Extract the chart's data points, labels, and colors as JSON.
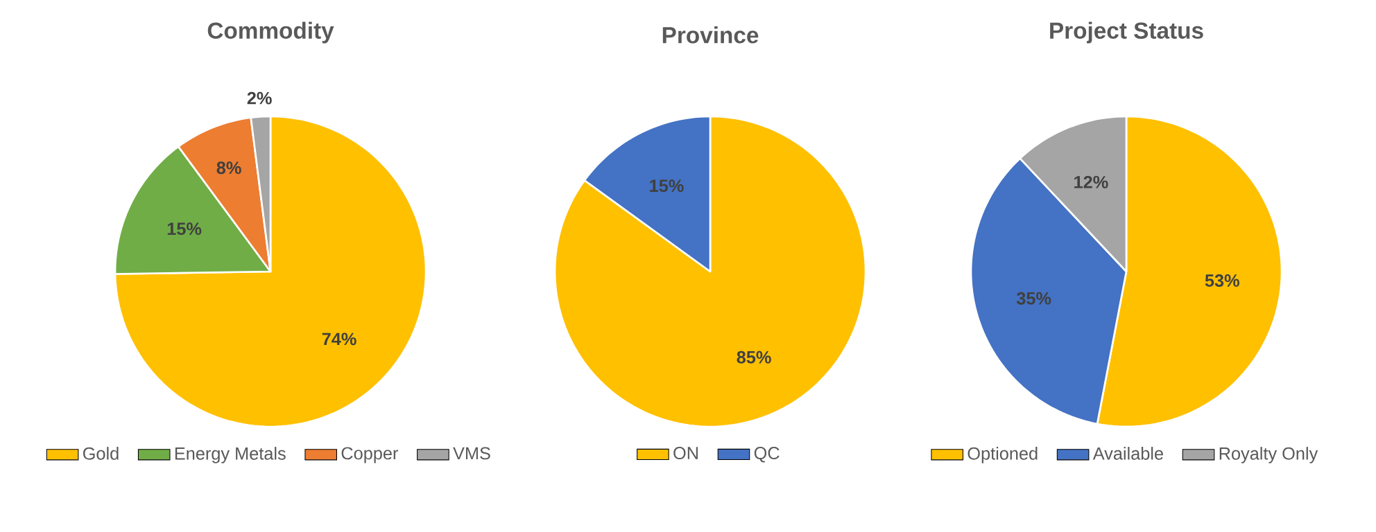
{
  "chart_data": [
    {
      "type": "pie",
      "title": "Commodity",
      "categories": [
        "Gold",
        "Energy Metals",
        "Copper",
        "VMS"
      ],
      "values": [
        74,
        15,
        8,
        2
      ],
      "colors": [
        "#ffc000",
        "#70ad47",
        "#ed7d31",
        "#a5a5a5"
      ],
      "value_labels": [
        "74%",
        "15%",
        "8%",
        "2%"
      ],
      "legend": "bottom"
    },
    {
      "type": "pie",
      "title": "Province",
      "categories": [
        "ON",
        "QC"
      ],
      "values": [
        85,
        15
      ],
      "colors": [
        "#ffc000",
        "#4472c4"
      ],
      "value_labels": [
        "85%",
        "15%"
      ],
      "legend": "bottom"
    },
    {
      "type": "pie",
      "title": "Project Status",
      "categories": [
        "Optioned",
        "Available",
        "Royalty Only"
      ],
      "values": [
        53,
        35,
        12
      ],
      "colors": [
        "#ffc000",
        "#4472c4",
        "#a5a5a5"
      ],
      "value_labels": [
        "53%",
        "35%",
        "12%"
      ],
      "legend": "bottom"
    }
  ]
}
